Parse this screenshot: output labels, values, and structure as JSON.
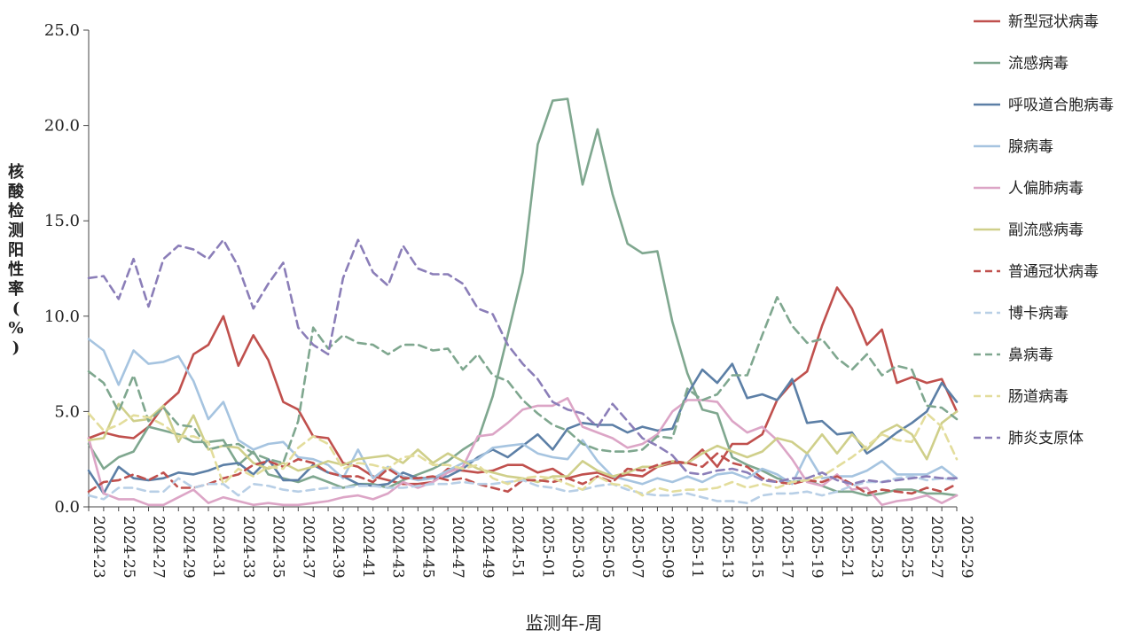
{
  "chart_data": {
    "type": "line",
    "title": "",
    "xlabel": "监测年-周",
    "ylabel": "核酸检测阳性率(%)",
    "ylim": [
      0,
      25
    ],
    "yticks": [
      "0.0",
      "5.0",
      "10.0",
      "15.0",
      "20.0",
      "25.0"
    ],
    "grid": false,
    "legend_position": "right",
    "x": [
      "2024-23",
      "2024-24",
      "2024-25",
      "2024-26",
      "2024-27",
      "2024-28",
      "2024-29",
      "2024-30",
      "2024-31",
      "2024-32",
      "2024-33",
      "2024-34",
      "2024-35",
      "2024-36",
      "2024-37",
      "2024-38",
      "2024-39",
      "2024-40",
      "2024-41",
      "2024-42",
      "2024-43",
      "2024-44",
      "2024-45",
      "2024-46",
      "2024-47",
      "2024-48",
      "2024-49",
      "2024-50",
      "2024-51",
      "2024-52",
      "2025-01",
      "2025-02",
      "2025-03",
      "2025-04",
      "2025-05",
      "2025-06",
      "2025-07",
      "2025-08",
      "2025-09",
      "2025-10",
      "2025-11",
      "2025-12",
      "2025-13",
      "2025-14",
      "2025-15",
      "2025-16",
      "2025-17",
      "2025-18",
      "2025-19",
      "2025-20",
      "2025-21",
      "2025-22",
      "2025-23",
      "2025-24",
      "2025-25",
      "2025-26",
      "2025-27",
      "2025-28",
      "2025-29"
    ],
    "xticks": [
      "2024-23",
      "2024-25",
      "2024-27",
      "2024-29",
      "2024-31",
      "2024-33",
      "2024-35",
      "2024-37",
      "2024-39",
      "2024-41",
      "2024-43",
      "2024-45",
      "2024-47",
      "2024-49",
      "2024-51",
      "2025-01",
      "2025-03",
      "2025-05",
      "2025-07",
      "2025-09",
      "2025-11",
      "2025-13",
      "2025-15",
      "2025-17",
      "2025-19",
      "2025-21",
      "2025-23",
      "2025-25",
      "2025-27",
      "2025-29"
    ],
    "series": [
      {
        "name": "新型冠状病毒",
        "color": "#c0504d",
        "dash": false,
        "values": [
          3.6,
          3.9,
          3.7,
          3.6,
          4.2,
          5.3,
          6.0,
          8.0,
          8.5,
          10.0,
          7.4,
          9.0,
          7.7,
          5.5,
          5.1,
          3.7,
          3.6,
          2.3,
          2.1,
          1.6,
          1.4,
          1.2,
          1.2,
          1.3,
          2.0,
          1.9,
          1.8,
          1.9,
          2.2,
          2.2,
          1.8,
          2.0,
          1.5,
          1.7,
          1.8,
          1.5,
          1.7,
          1.6,
          2.1,
          2.3,
          2.3,
          3.0,
          2.1,
          3.3,
          3.3,
          3.8,
          5.6,
          6.5,
          7.1,
          9.5,
          11.5,
          10.4,
          8.5,
          9.3,
          6.5,
          6.8,
          6.5,
          6.7,
          5.0
        ]
      },
      {
        "name": "流感病毒",
        "color": "#7fa78f",
        "dash": false,
        "values": [
          3.3,
          2.0,
          2.6,
          2.9,
          4.2,
          4.0,
          3.8,
          3.4,
          3.4,
          3.5,
          2.2,
          2.9,
          1.7,
          1.5,
          1.3,
          1.6,
          1.3,
          1.0,
          1.2,
          1.2,
          1.0,
          1.4,
          1.7,
          2.0,
          2.4,
          3.0,
          3.5,
          5.8,
          9.0,
          12.3,
          19.0,
          21.3,
          21.4,
          16.9,
          19.8,
          16.4,
          13.8,
          13.3,
          13.4,
          9.7,
          7.0,
          5.1,
          4.9,
          2.6,
          2.2,
          1.9,
          1.5,
          1.3,
          1.4,
          1.1,
          0.8,
          0.8,
          0.6,
          0.7,
          0.9,
          0.9,
          0.7,
          0.7,
          0.6
        ]
      },
      {
        "name": "呼吸道合胞病毒",
        "color": "#5c7fa6",
        "dash": false,
        "values": [
          1.9,
          0.7,
          2.1,
          1.5,
          1.4,
          1.5,
          1.8,
          1.7,
          1.9,
          2.2,
          2.3,
          1.7,
          2.5,
          1.4,
          1.4,
          2.2,
          1.8,
          1.6,
          1.2,
          1.1,
          1.2,
          1.8,
          1.5,
          1.5,
          1.6,
          2.0,
          2.6,
          3.0,
          2.6,
          3.2,
          3.8,
          3.0,
          4.1,
          4.4,
          4.3,
          4.3,
          3.9,
          4.2,
          4.0,
          4.1,
          5.9,
          7.2,
          6.5,
          7.5,
          5.7,
          5.9,
          5.6,
          6.7,
          4.4,
          4.5,
          3.8,
          3.9,
          2.8,
          3.3,
          3.9,
          4.4,
          5.0,
          6.5,
          5.5
        ]
      },
      {
        "name": "腺病毒",
        "color": "#a6c4e0",
        "dash": false,
        "values": [
          8.8,
          8.2,
          6.4,
          8.2,
          7.5,
          7.6,
          7.9,
          6.6,
          4.6,
          5.5,
          3.5,
          3.0,
          3.3,
          3.4,
          2.6,
          2.5,
          2.2,
          1.5,
          3.0,
          1.5,
          2.1,
          1.6,
          1.4,
          1.5,
          1.9,
          2.3,
          2.5,
          3.1,
          3.2,
          3.3,
          2.8,
          2.6,
          2.5,
          3.5,
          2.4,
          1.6,
          1.4,
          1.2,
          1.5,
          1.3,
          1.6,
          1.3,
          1.7,
          1.8,
          1.5,
          2.0,
          1.7,
          1.2,
          2.8,
          1.5,
          1.6,
          1.6,
          1.9,
          2.4,
          1.7,
          1.7,
          1.7,
          2.1,
          1.5
        ]
      },
      {
        "name": "人偏肺病毒",
        "color": "#dca5c6",
        "dash": false,
        "values": [
          3.6,
          0.7,
          0.4,
          0.4,
          0.1,
          0.1,
          0.5,
          0.9,
          0.2,
          0.5,
          0.3,
          0.1,
          0.2,
          0.1,
          0.1,
          0.2,
          0.3,
          0.5,
          0.6,
          0.4,
          0.7,
          1.3,
          1.0,
          1.3,
          1.8,
          2.1,
          3.7,
          3.8,
          4.4,
          5.1,
          5.3,
          5.3,
          5.7,
          4.2,
          3.9,
          3.6,
          3.1,
          3.3,
          3.8,
          5.0,
          5.6,
          5.6,
          5.5,
          4.5,
          3.9,
          4.2,
          3.5,
          2.5,
          1.3,
          1.1,
          1.7,
          0.9,
          1.0,
          0.1,
          0.3,
          0.4,
          0.6,
          0.2,
          0.6
        ]
      },
      {
        "name": "副流感病毒",
        "color": "#cfcf8a",
        "dash": false,
        "values": [
          3.5,
          3.6,
          5.4,
          4.5,
          4.6,
          5.3,
          3.4,
          4.8,
          3.0,
          3.2,
          3.1,
          2.3,
          2.0,
          2.3,
          1.9,
          2.1,
          2.4,
          2.2,
          2.5,
          2.6,
          2.7,
          2.3,
          3.0,
          2.3,
          2.8,
          2.4,
          2.0,
          1.8,
          1.6,
          1.5,
          1.3,
          1.6,
          1.6,
          2.4,
          1.9,
          1.6,
          1.8,
          2.1,
          2.1,
          2.4,
          2.3,
          2.8,
          3.2,
          2.9,
          2.6,
          2.9,
          3.6,
          3.4,
          2.8,
          3.8,
          2.8,
          3.8,
          3.0,
          3.9,
          4.3,
          3.8,
          2.5,
          4.4,
          5.0
        ]
      },
      {
        "name": "普通冠状病毒",
        "color": "#c0504d",
        "dash": true,
        "values": [
          0.8,
          1.3,
          1.4,
          1.7,
          1.4,
          1.8,
          1.0,
          1.0,
          1.2,
          1.5,
          1.7,
          2.2,
          2.4,
          2.1,
          2.5,
          2.3,
          1.8,
          1.6,
          1.6,
          1.3,
          2.0,
          1.5,
          1.5,
          1.6,
          1.4,
          1.5,
          1.2,
          1.0,
          0.8,
          1.4,
          1.4,
          1.3,
          1.5,
          1.2,
          1.6,
          1.3,
          2.0,
          1.9,
          2.2,
          2.4,
          2.3,
          2.1,
          2.8,
          2.3,
          2.1,
          1.5,
          1.3,
          1.2,
          1.4,
          1.3,
          1.6,
          1.2,
          0.7,
          0.9,
          0.8,
          0.7,
          1.0,
          0.8,
          1.2
        ]
      },
      {
        "name": "博卡病毒",
        "color": "#b8cfe6",
        "dash": true,
        "values": [
          0.6,
          0.4,
          1.0,
          1.0,
          0.8,
          0.8,
          1.5,
          1.0,
          1.2,
          1.2,
          0.6,
          1.2,
          1.1,
          0.9,
          0.8,
          0.9,
          1.0,
          1.0,
          1.1,
          1.1,
          1.0,
          1.0,
          1.1,
          1.2,
          1.2,
          1.3,
          1.2,
          1.2,
          1.3,
          1.4,
          1.1,
          1.0,
          0.8,
          0.9,
          1.1,
          1.2,
          0.9,
          0.7,
          0.6,
          0.6,
          0.7,
          0.5,
          0.3,
          0.3,
          0.2,
          0.6,
          0.7,
          0.7,
          0.8,
          0.6,
          0.8,
          1.1,
          1.3,
          1.3,
          1.5,
          1.6,
          1.4,
          1.5,
          1.4
        ]
      },
      {
        "name": "鼻病毒",
        "color": "#7fa78f",
        "dash": true,
        "values": [
          7.1,
          6.5,
          5.0,
          6.9,
          4.5,
          5.2,
          4.3,
          4.2,
          3.0,
          3.2,
          3.3,
          2.8,
          2.5,
          2.3,
          4.5,
          9.4,
          8.3,
          9.0,
          8.6,
          8.5,
          8.0,
          8.5,
          8.5,
          8.2,
          8.3,
          7.2,
          8.0,
          6.9,
          6.6,
          5.6,
          4.9,
          4.3,
          4.0,
          3.3,
          3.0,
          2.9,
          2.9,
          3.0,
          3.7,
          3.6,
          6.2,
          5.6,
          5.9,
          6.9,
          6.9,
          9.0,
          11.0,
          9.5,
          8.6,
          8.8,
          7.8,
          7.2,
          8.0,
          6.9,
          7.4,
          7.2,
          5.3,
          5.2,
          4.6
        ]
      },
      {
        "name": "肠道病毒",
        "color": "#e3dd9c",
        "dash": true,
        "values": [
          4.9,
          4.0,
          4.3,
          4.8,
          4.7,
          4.3,
          3.7,
          3.7,
          3.4,
          1.2,
          2.0,
          1.6,
          2.1,
          2.0,
          3.1,
          3.7,
          3.3,
          2.0,
          2.3,
          2.2,
          2.0,
          2.6,
          2.7,
          2.2,
          2.2,
          2.0,
          2.2,
          1.5,
          1.2,
          1.5,
          1.6,
          1.5,
          1.2,
          0.9,
          1.6,
          1.2,
          1.1,
          0.6,
          1.0,
          0.8,
          0.9,
          0.9,
          1.0,
          1.3,
          1.0,
          1.2,
          1.0,
          1.3,
          1.4,
          1.6,
          2.1,
          2.6,
          3.2,
          3.8,
          3.5,
          3.4,
          4.9,
          4.2,
          2.5
        ]
      },
      {
        "name": "肺炎支原体",
        "color": "#8b7eb8",
        "dash": true,
        "values": [
          12.0,
          12.1,
          10.9,
          13.0,
          10.5,
          13.0,
          13.7,
          13.5,
          13.0,
          14.0,
          12.6,
          10.4,
          11.7,
          12.8,
          9.4,
          8.5,
          8.0,
          12.0,
          14.0,
          12.3,
          11.6,
          13.7,
          12.5,
          12.2,
          12.2,
          11.7,
          10.4,
          10.1,
          8.5,
          7.5,
          6.7,
          5.5,
          5.1,
          4.9,
          4.2,
          5.4,
          4.5,
          3.6,
          3.2,
          2.7,
          1.8,
          1.7,
          1.9,
          2.0,
          1.8,
          1.4,
          1.3,
          1.5,
          1.5,
          1.8,
          1.4,
          1.2,
          1.4,
          1.3,
          1.4,
          1.5,
          1.6,
          1.5,
          1.5
        ]
      }
    ]
  }
}
